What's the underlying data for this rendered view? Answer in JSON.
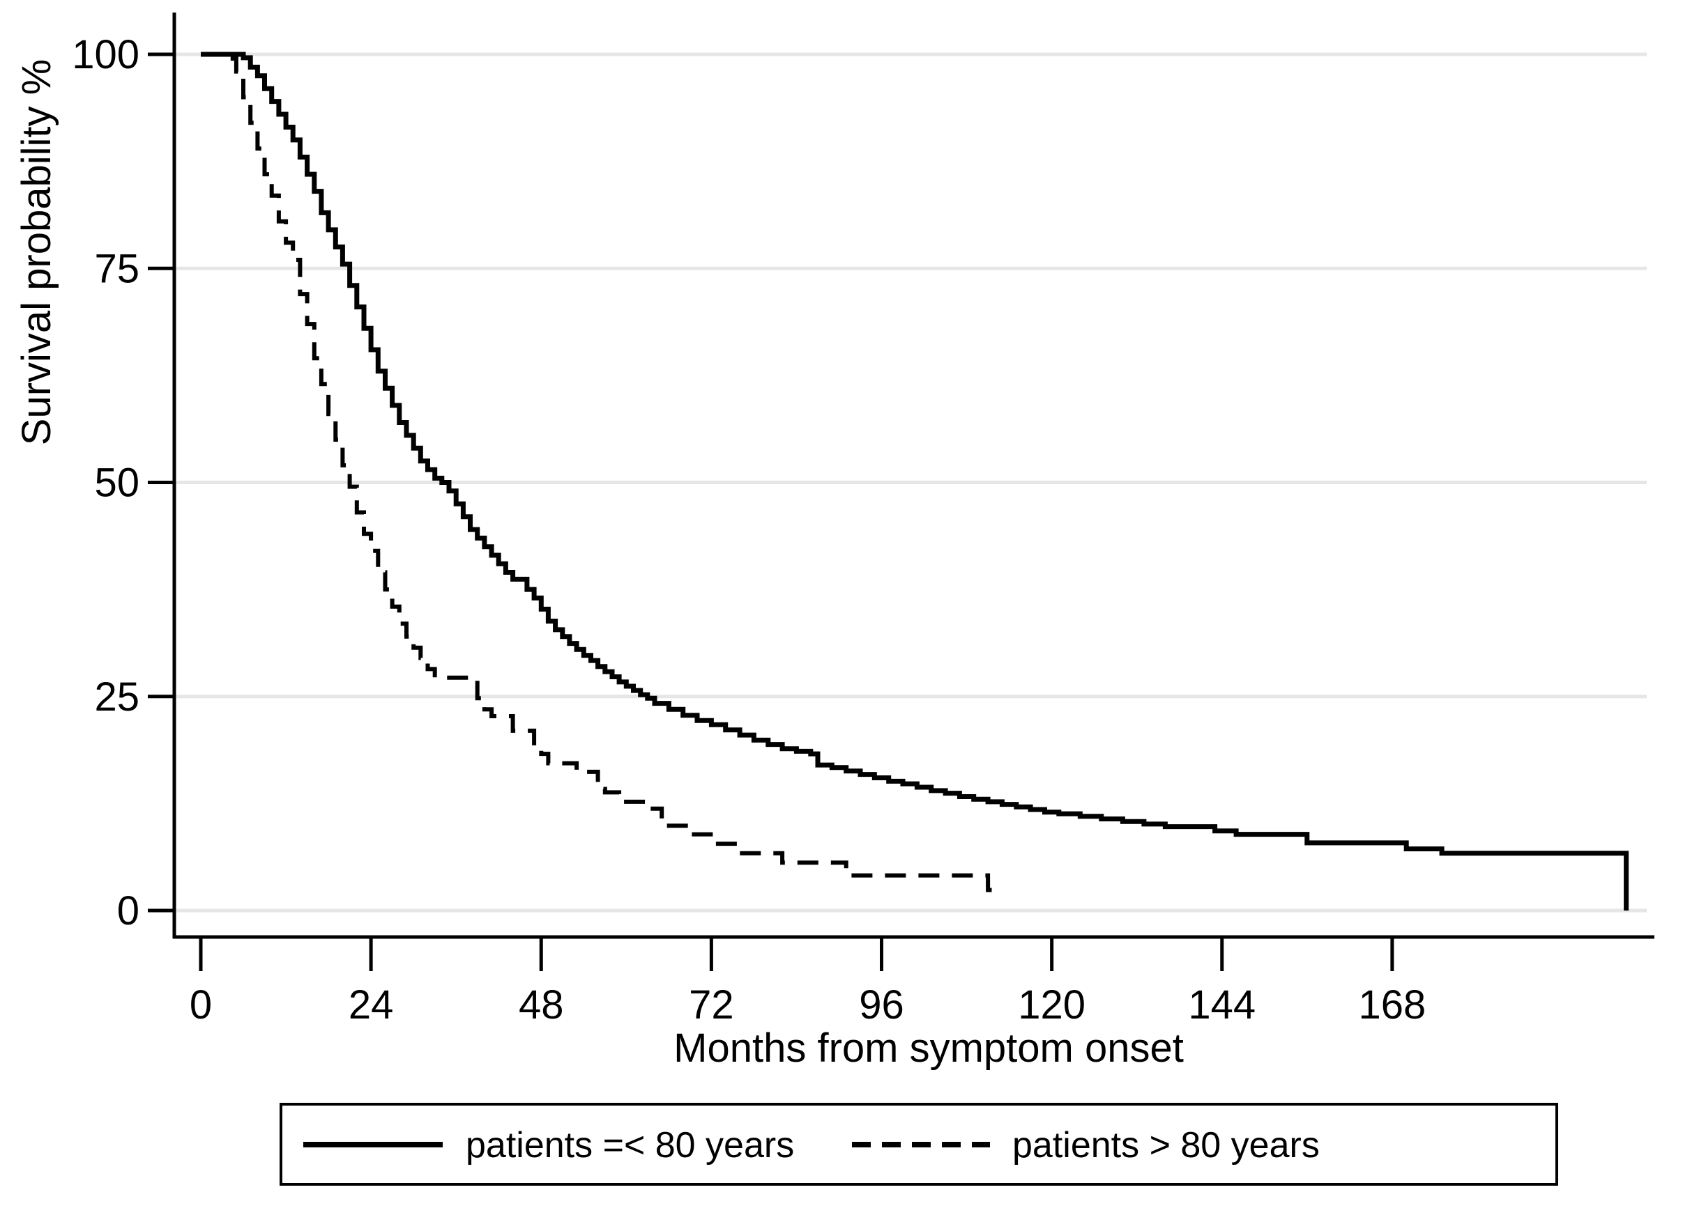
{
  "figure": {
    "background": "#ffffff"
  },
  "chart_data": {
    "type": "line",
    "subtype": "kaplan-meier-step",
    "curve": "step-after",
    "title": "",
    "xlabel": "Months from symptom onset",
    "ylabel": "Survival probability %",
    "xlim": [
      0,
      205
    ],
    "ylim": [
      0,
      100
    ],
    "x_ticks": [
      0,
      24,
      48,
      72,
      96,
      120,
      144,
      168
    ],
    "y_ticks": [
      0,
      25,
      50,
      75,
      100
    ],
    "grid": "horizontal",
    "legend_position": "bottom",
    "colors": {
      "line": "#000000",
      "grid": "#e6e6e6",
      "axis": "#000000",
      "background": "#ffffff"
    },
    "series": [
      {
        "name": "patients =< 80 years",
        "style": "solid",
        "points": [
          [
            0,
            100
          ],
          [
            6,
            99.6
          ],
          [
            7,
            98.5
          ],
          [
            8,
            97.5
          ],
          [
            9,
            96
          ],
          [
            10,
            94.5
          ],
          [
            11,
            93
          ],
          [
            12,
            91.5
          ],
          [
            13,
            90
          ],
          [
            14,
            88
          ],
          [
            15,
            86
          ],
          [
            16,
            84
          ],
          [
            17,
            81.5
          ],
          [
            18,
            79.5
          ],
          [
            19,
            77.5
          ],
          [
            20,
            75.5
          ],
          [
            21,
            73
          ],
          [
            22,
            70.5
          ],
          [
            23,
            68
          ],
          [
            24,
            65.5
          ],
          [
            25,
            63
          ],
          [
            26,
            61
          ],
          [
            27,
            59
          ],
          [
            28,
            57
          ],
          [
            29,
            55.5
          ],
          [
            30,
            54
          ],
          [
            31,
            52.5
          ],
          [
            32,
            51.5
          ],
          [
            33,
            50.5
          ],
          [
            34,
            50
          ],
          [
            35,
            49
          ],
          [
            36,
            47.5
          ],
          [
            37,
            46
          ],
          [
            38,
            44.5
          ],
          [
            39,
            43.5
          ],
          [
            40,
            42.5
          ],
          [
            41,
            41.5
          ],
          [
            42,
            40.5
          ],
          [
            43,
            39.5
          ],
          [
            44,
            38.7
          ],
          [
            46,
            37.5
          ],
          [
            47,
            36.5
          ],
          [
            48,
            35.2
          ],
          [
            49,
            33.8
          ],
          [
            50,
            32.8
          ],
          [
            51,
            32
          ],
          [
            52,
            31.2
          ],
          [
            53,
            30.5
          ],
          [
            54,
            29.8
          ],
          [
            55,
            29.2
          ],
          [
            56,
            28.5
          ],
          [
            57,
            27.9
          ],
          [
            58,
            27.3
          ],
          [
            59,
            26.7
          ],
          [
            60,
            26.2
          ],
          [
            61,
            25.7
          ],
          [
            62,
            25.2
          ],
          [
            63,
            24.8
          ],
          [
            64,
            24.2
          ],
          [
            66,
            23.5
          ],
          [
            68,
            22.8
          ],
          [
            70,
            22.2
          ],
          [
            72,
            21.7
          ],
          [
            74,
            21.1
          ],
          [
            76,
            20.5
          ],
          [
            78,
            19.9
          ],
          [
            80,
            19.4
          ],
          [
            82,
            18.9
          ],
          [
            84,
            18.6
          ],
          [
            86,
            18.3
          ],
          [
            87,
            17
          ],
          [
            89,
            16.7
          ],
          [
            91,
            16.3
          ],
          [
            93,
            15.9
          ],
          [
            95,
            15.5
          ],
          [
            97,
            15.1
          ],
          [
            99,
            14.8
          ],
          [
            101,
            14.4
          ],
          [
            103,
            14
          ],
          [
            105,
            13.7
          ],
          [
            107,
            13.3
          ],
          [
            109,
            13
          ],
          [
            111,
            12.7
          ],
          [
            113,
            12.4
          ],
          [
            115,
            12.1
          ],
          [
            117,
            11.8
          ],
          [
            119,
            11.5
          ],
          [
            121,
            11.3
          ],
          [
            124,
            11
          ],
          [
            127,
            10.7
          ],
          [
            130,
            10.4
          ],
          [
            133,
            10.1
          ],
          [
            136,
            9.8
          ],
          [
            143,
            9.3
          ],
          [
            146,
            8.9
          ],
          [
            156,
            7.9
          ],
          [
            170,
            7.2
          ],
          [
            175,
            6.7
          ],
          [
            201,
            0
          ]
        ]
      },
      {
        "name": "patients > 80 years",
        "style": "dashed",
        "points": [
          [
            0,
            100
          ],
          [
            4.5,
            99.5
          ],
          [
            5,
            98
          ],
          [
            6,
            95
          ],
          [
            7,
            92
          ],
          [
            8,
            89
          ],
          [
            9,
            86
          ],
          [
            10,
            83.5
          ],
          [
            11,
            80.5
          ],
          [
            12,
            78
          ],
          [
            13,
            76
          ],
          [
            14,
            72
          ],
          [
            15,
            68.5
          ],
          [
            16,
            64.5
          ],
          [
            17,
            61.5
          ],
          [
            18,
            58
          ],
          [
            19,
            55
          ],
          [
            20,
            52
          ],
          [
            21,
            49.5
          ],
          [
            22,
            46.5
          ],
          [
            23,
            44
          ],
          [
            24,
            42
          ],
          [
            25,
            39.5
          ],
          [
            26,
            37.5
          ],
          [
            27,
            35.5
          ],
          [
            28,
            33.5
          ],
          [
            29,
            32
          ],
          [
            30,
            30.7
          ],
          [
            31,
            29.5
          ],
          [
            32,
            28.2
          ],
          [
            33,
            27.2
          ],
          [
            39,
            24.8
          ],
          [
            40,
            23.5
          ],
          [
            41,
            22.7
          ],
          [
            44,
            21
          ],
          [
            47,
            19.2
          ],
          [
            48,
            18.3
          ],
          [
            49,
            17.2
          ],
          [
            53,
            16.2
          ],
          [
            56,
            14.2
          ],
          [
            57,
            13.8
          ],
          [
            59,
            12.7
          ],
          [
            63,
            11.9
          ],
          [
            65,
            9.9
          ],
          [
            69,
            8.9
          ],
          [
            72.5,
            7.8
          ],
          [
            76,
            6.7
          ],
          [
            82,
            5.6
          ],
          [
            91,
            4.1
          ],
          [
            111,
            2.4
          ],
          [
            112.5,
            2.4
          ]
        ]
      }
    ]
  },
  "legend": {
    "items": [
      {
        "label": "patients =< 80 years",
        "line_style": "solid"
      },
      {
        "label": "patients > 80 years",
        "line_style": "dashed"
      }
    ]
  }
}
